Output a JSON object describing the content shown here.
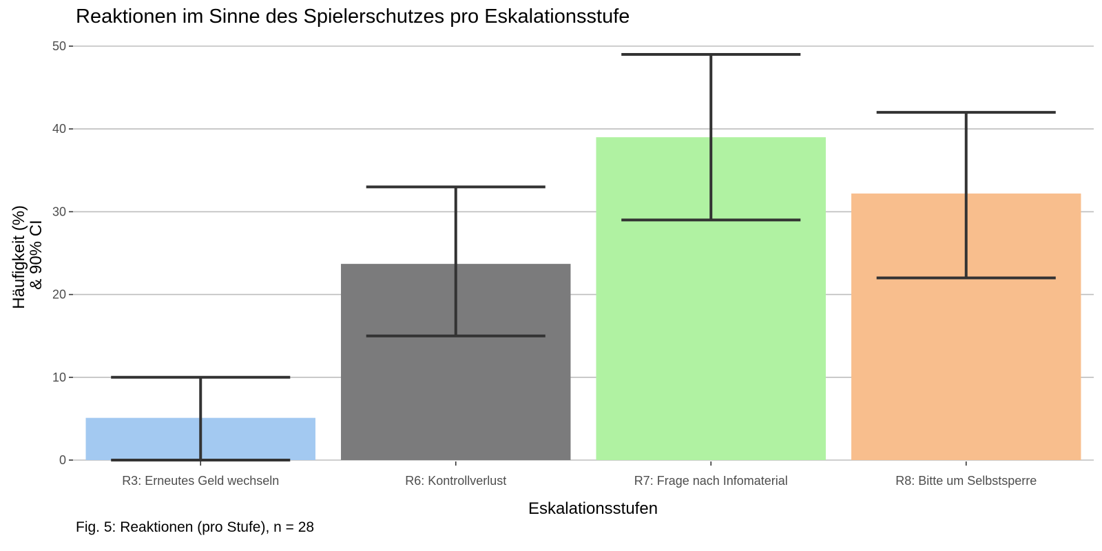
{
  "chart_data": {
    "type": "bar",
    "title": "Reaktionen im Sinne des Spielerschutzes pro Eskalationsstufe",
    "xlabel": "Eskalationsstufen",
    "ylabel_lines": [
      "Häufigkeit (%)",
      "& 90% CI"
    ],
    "caption": "Fig. 5: Reaktionen (pro Stufe), n = 28",
    "categories": [
      "R3: Erneutes Geld wechseln",
      "R6: Kontrollverlust",
      "R7: Frage nach Infomaterial",
      "R8: Bitte um Selbstsperre"
    ],
    "values": [
      5.1,
      23.7,
      39.0,
      32.2
    ],
    "ci_lower": [
      0,
      15,
      29,
      22
    ],
    "ci_upper": [
      10,
      33,
      49,
      42
    ],
    "colors": [
      "#a3c9f1",
      "#7b7b7c",
      "#b0f2a2",
      "#f8be8d"
    ],
    "ylim": [
      0,
      50
    ],
    "yticks": [
      0,
      10,
      20,
      30,
      40,
      50
    ],
    "grid": true,
    "legend": "none"
  }
}
